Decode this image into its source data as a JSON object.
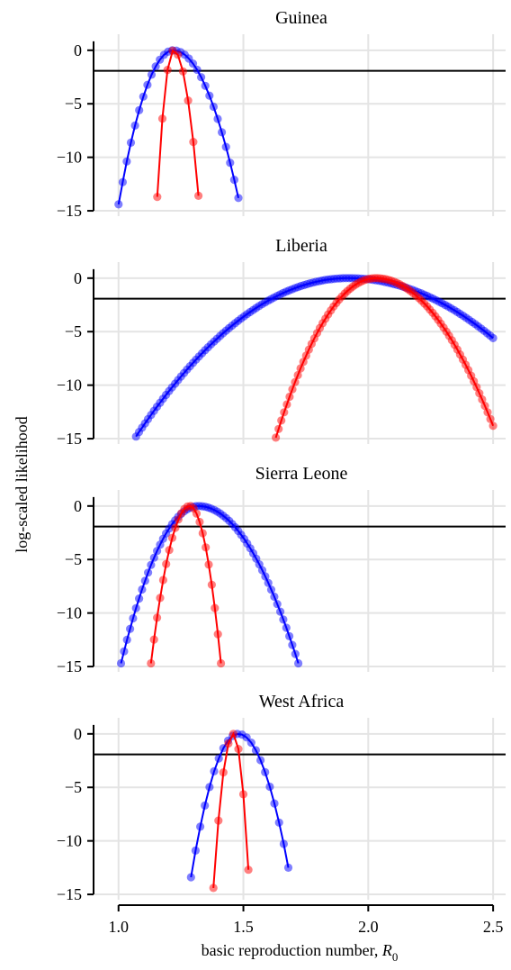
{
  "figure": {
    "ylabel": "log-scaled likelihood",
    "xlabel_text": "basic reproduction number, ",
    "xlabel_symbol": "R",
    "xlabel_subscript": "0"
  },
  "chart_data": [
    {
      "type": "line",
      "title": "Guinea",
      "xlim": [
        0.9,
        2.55
      ],
      "ylim": [
        -15.5,
        1.5
      ],
      "xticks": [
        1.0,
        1.5,
        2.0,
        2.5
      ],
      "yticks": [
        0,
        -5,
        -10,
        -15
      ],
      "ytick_labels": [
        "0",
        "−5",
        "−10",
        "−15"
      ],
      "hline": -1.92,
      "grid": true,
      "series": [
        {
          "color": "#0000ff",
          "peak_x": 1.22,
          "min_x": 1.0,
          "max_x": 1.48,
          "min_y": -14.4,
          "max_y": -13.8,
          "n": 30
        },
        {
          "color": "#ff0000",
          "peak_x": 1.22,
          "min_x": 1.155,
          "max_x": 1.32,
          "min_y": -13.7,
          "max_y": -13.6,
          "n": 9
        }
      ]
    },
    {
      "type": "line",
      "title": "Liberia",
      "xlim": [
        0.9,
        2.55
      ],
      "ylim": [
        -15.5,
        1.5
      ],
      "xticks": [
        1.0,
        1.5,
        2.0,
        2.5
      ],
      "yticks": [
        0,
        -5,
        -10,
        -15
      ],
      "ytick_labels": [
        "0",
        "−5",
        "−10",
        "−15"
      ],
      "hline": -1.92,
      "grid": true,
      "series": [
        {
          "color": "#0000ff",
          "peak_x": 1.92,
          "min_x": 1.07,
          "max_x": 2.5,
          "min_y": -14.8,
          "max_y": -5.6,
          "n": 120
        },
        {
          "color": "#ff0000",
          "peak_x": 2.03,
          "min_x": 1.63,
          "max_x": 2.5,
          "min_y": -14.9,
          "max_y": -13.8,
          "n": 80
        }
      ]
    },
    {
      "type": "line",
      "title": "Sierra Leone",
      "xlim": [
        0.9,
        2.55
      ],
      "ylim": [
        -15.5,
        1.5
      ],
      "xticks": [
        1.0,
        1.5,
        2.0,
        2.5
      ],
      "yticks": [
        0,
        -5,
        -10,
        -15
      ],
      "ytick_labels": [
        "0",
        "−5",
        "−10",
        "−15"
      ],
      "hline": -1.92,
      "grid": true,
      "series": [
        {
          "color": "#0000ff",
          "peak_x": 1.32,
          "min_x": 1.01,
          "max_x": 1.72,
          "min_y": -14.7,
          "max_y": -14.7,
          "n": 60
        },
        {
          "color": "#ff0000",
          "peak_x": 1.285,
          "min_x": 1.13,
          "max_x": 1.41,
          "min_y": -14.7,
          "max_y": -14.7,
          "n": 24
        }
      ]
    },
    {
      "type": "line",
      "title": "West Africa",
      "xlim": [
        0.9,
        2.55
      ],
      "ylim": [
        -15.5,
        1.5
      ],
      "xticks": [
        1.0,
        1.5,
        2.0,
        2.5
      ],
      "yticks": [
        0,
        -5,
        -10,
        -15
      ],
      "ytick_labels": [
        "0",
        "−5",
        "−10",
        "−15"
      ],
      "xtick_labels": [
        "1.0",
        "1.5",
        "2.0",
        "2.5"
      ],
      "hline": -1.92,
      "grid": true,
      "series": [
        {
          "color": "#0000ff",
          "peak_x": 1.48,
          "min_x": 1.29,
          "max_x": 1.68,
          "min_y": -13.4,
          "max_y": -12.5,
          "n": 22
        },
        {
          "color": "#ff0000",
          "peak_x": 1.46,
          "min_x": 1.38,
          "max_x": 1.52,
          "min_y": -14.4,
          "max_y": -12.7,
          "n": 8
        }
      ]
    }
  ]
}
